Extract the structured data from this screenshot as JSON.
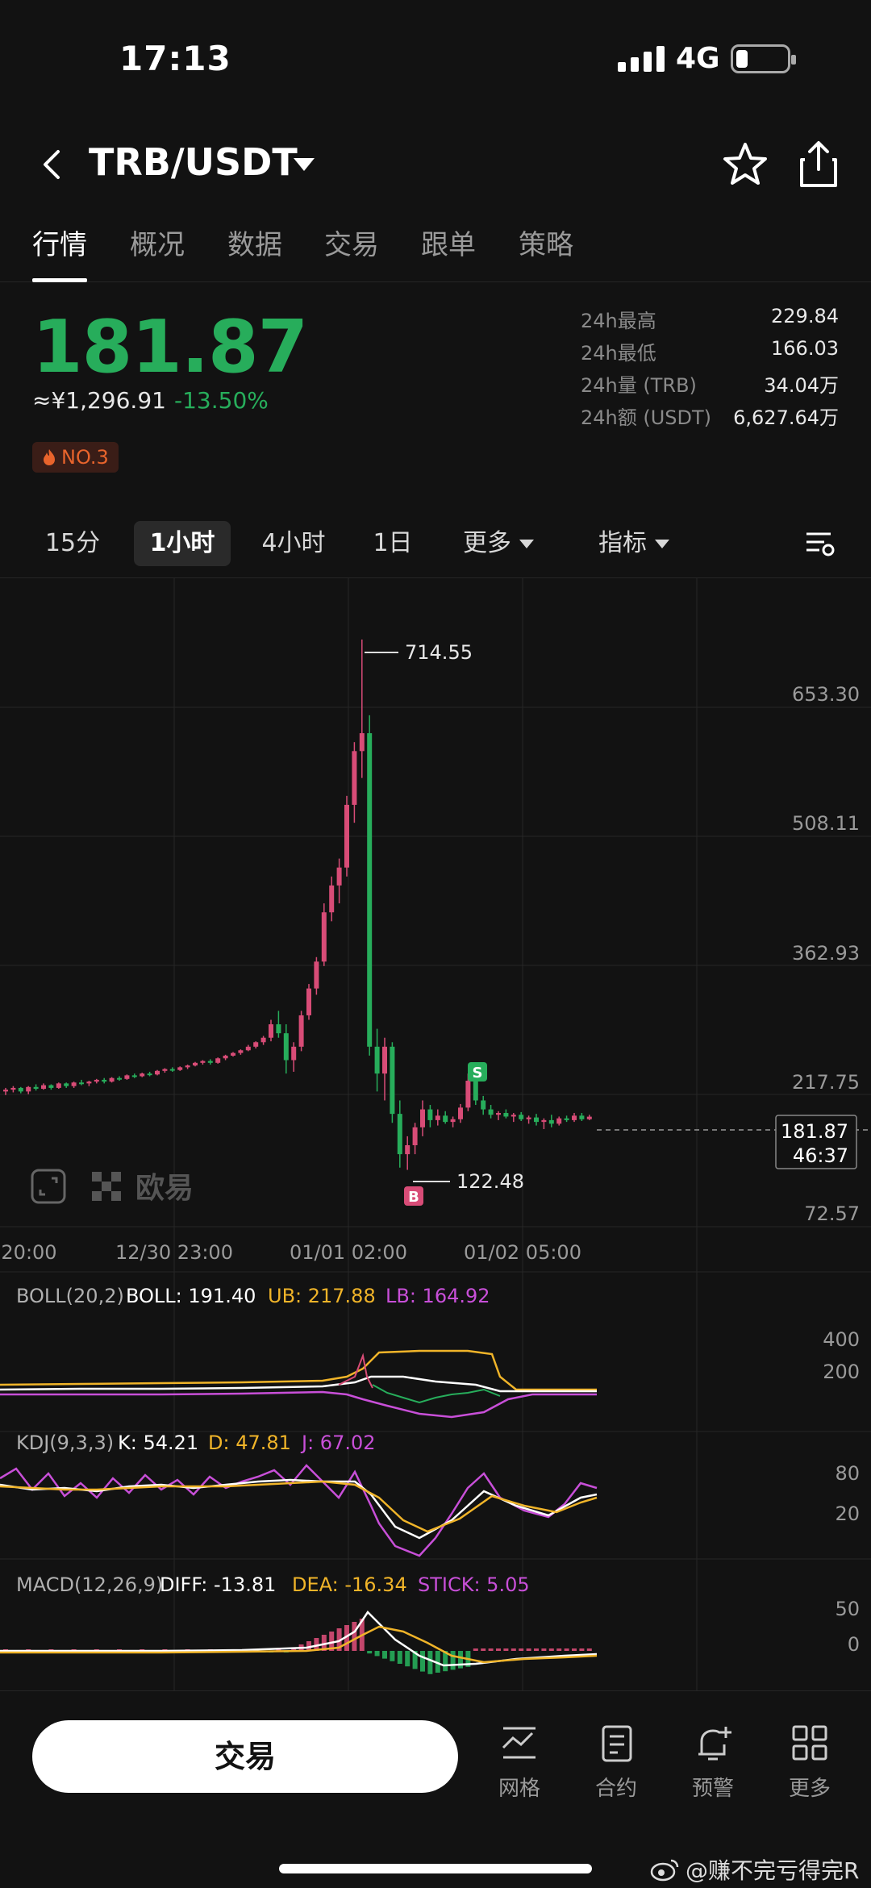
{
  "status_bar": {
    "time": "17:13",
    "network": "4G"
  },
  "header": {
    "pair": "TRB/USDT"
  },
  "tabs": [
    {
      "label": "行情",
      "active": true
    },
    {
      "label": "概况",
      "active": false
    },
    {
      "label": "数据",
      "active": false
    },
    {
      "label": "交易",
      "active": false
    },
    {
      "label": "跟单",
      "active": false
    },
    {
      "label": "策略",
      "active": false
    }
  ],
  "ticker": {
    "price": "181.87",
    "cny": "≈¥1,296.91",
    "change": "-13.50%",
    "rank": "NO.3",
    "stats": [
      {
        "label": "24h最高",
        "value": "229.84"
      },
      {
        "label": "24h最低",
        "value": "166.03"
      },
      {
        "label": "24h量 (TRB)",
        "value": "34.04万"
      },
      {
        "label": "24h额 (USDT)",
        "value": "6,627.64万"
      }
    ]
  },
  "intervals": [
    {
      "label": "15分",
      "active": false
    },
    {
      "label": "1小时",
      "active": true
    },
    {
      "label": "4小时",
      "active": false
    },
    {
      "label": "1日",
      "active": false
    },
    {
      "label": "更多",
      "active": false
    },
    {
      "label": "指标",
      "active": false
    }
  ],
  "colors": {
    "up": "#d84c77",
    "down": "#27ad5b",
    "yellow": "#f0b429",
    "purple": "#c84fd8",
    "white_line": "#ffffff"
  },
  "chart_data": {
    "type": "candlestick",
    "price_axis": [
      "653.30",
      "508.11",
      "362.93",
      "217.75",
      "72.57"
    ],
    "time_axis": [
      "20:00",
      "12/30 23:00",
      "01/01 02:00",
      "01/02 05:00"
    ],
    "high_marker": "714.55",
    "low_marker": "122.48",
    "current_price": "181.87",
    "countdown": "46:37",
    "buy_marker": "B",
    "sell_marker": "S",
    "boll": {
      "label": "BOLL(20,2)",
      "mid": "BOLL: 191.40",
      "ub": "UB: 217.88",
      "lb": "LB: 164.92",
      "axis": [
        "400",
        "200"
      ]
    },
    "kdj": {
      "label": "KDJ(9,3,3)",
      "k": "K: 54.21",
      "d": "D: 47.81",
      "j": "J: 67.02",
      "axis": [
        "80",
        "20"
      ]
    },
    "macd": {
      "label": "MACD(12,26,9)",
      "diff": "DIFF: -13.81",
      "dea": "DEA: -16.34",
      "stick": "STICK: 5.05",
      "axis": [
        "50",
        "0"
      ]
    },
    "candles": [
      [
        210,
        214,
        206,
        212
      ],
      [
        212,
        216,
        209,
        214
      ],
      [
        214,
        215,
        208,
        210
      ],
      [
        210,
        216,
        207,
        215
      ],
      [
        215,
        218,
        211,
        213
      ],
      [
        213,
        219,
        212,
        217
      ],
      [
        217,
        218,
        212,
        214
      ],
      [
        214,
        220,
        213,
        219
      ],
      [
        219,
        220,
        214,
        216
      ],
      [
        216,
        221,
        214,
        220
      ],
      [
        220,
        223,
        217,
        219
      ],
      [
        219,
        222,
        216,
        221
      ],
      [
        221,
        224,
        219,
        223
      ],
      [
        223,
        225,
        219,
        221
      ],
      [
        221,
        226,
        220,
        225
      ],
      [
        225,
        227,
        222,
        224
      ],
      [
        224,
        229,
        223,
        228
      ],
      [
        228,
        230,
        225,
        227
      ],
      [
        227,
        231,
        226,
        230
      ],
      [
        230,
        232,
        227,
        229
      ],
      [
        229,
        234,
        228,
        233
      ],
      [
        233,
        236,
        231,
        235
      ],
      [
        235,
        237,
        232,
        234
      ],
      [
        234,
        238,
        233,
        237
      ],
      [
        237,
        240,
        235,
        239
      ],
      [
        239,
        243,
        238,
        242
      ],
      [
        242,
        245,
        240,
        244
      ],
      [
        244,
        246,
        240,
        242
      ],
      [
        242,
        248,
        241,
        247
      ],
      [
        247,
        251,
        245,
        250
      ],
      [
        250,
        254,
        249,
        253
      ],
      [
        253,
        257,
        251,
        256
      ],
      [
        256,
        262,
        255,
        260
      ],
      [
        260,
        266,
        258,
        265
      ],
      [
        265,
        272,
        262,
        270
      ],
      [
        270,
        290,
        266,
        285
      ],
      [
        285,
        300,
        270,
        275
      ],
      [
        275,
        285,
        230,
        245
      ],
      [
        245,
        265,
        232,
        260
      ],
      [
        260,
        300,
        255,
        295
      ],
      [
        295,
        330,
        290,
        325
      ],
      [
        325,
        360,
        318,
        355
      ],
      [
        355,
        420,
        350,
        410
      ],
      [
        410,
        450,
        400,
        440
      ],
      [
        440,
        470,
        420,
        460
      ],
      [
        460,
        540,
        450,
        530
      ],
      [
        530,
        600,
        510,
        590
      ],
      [
        590,
        714.55,
        560,
        610
      ],
      [
        610,
        630,
        250,
        260
      ],
      [
        260,
        280,
        210,
        230
      ],
      [
        230,
        270,
        200,
        260
      ],
      [
        260,
        265,
        175,
        185
      ],
      [
        185,
        200,
        125,
        140
      ],
      [
        140,
        160,
        122.48,
        150
      ],
      [
        150,
        175,
        140,
        170
      ],
      [
        170,
        200,
        160,
        190
      ],
      [
        190,
        195,
        170,
        178
      ],
      [
        178,
        190,
        172,
        183
      ],
      [
        183,
        188,
        174,
        176
      ],
      [
        176,
        182,
        170,
        179
      ],
      [
        179,
        196,
        175,
        192
      ],
      [
        192,
        230,
        188,
        222
      ],
      [
        222,
        226,
        195,
        200
      ],
      [
        200,
        205,
        184,
        190
      ],
      [
        190,
        195,
        180,
        184
      ],
      [
        184,
        188,
        178,
        186
      ],
      [
        186,
        190,
        180,
        182
      ],
      [
        182,
        186,
        176,
        184
      ],
      [
        184,
        187,
        177,
        179
      ],
      [
        179,
        183,
        174,
        181
      ],
      [
        181,
        185,
        172,
        176
      ],
      [
        176,
        180,
        168,
        178
      ],
      [
        178,
        184,
        170,
        174
      ],
      [
        174,
        182,
        172,
        180
      ],
      [
        180,
        183,
        176,
        178
      ],
      [
        178,
        186,
        176,
        183
      ],
      [
        183,
        186,
        177,
        179
      ],
      [
        179,
        184,
        178,
        181.87
      ]
    ]
  },
  "bottom_bar": {
    "trade_label": "交易",
    "items": [
      {
        "label": "网格",
        "icon": "grid-trading-icon"
      },
      {
        "label": "合约",
        "icon": "contract-icon"
      },
      {
        "label": "预警",
        "icon": "alert-bell-icon"
      },
      {
        "label": "更多",
        "icon": "more-apps-icon"
      }
    ]
  },
  "watermark": "@赚不完亏得完R"
}
